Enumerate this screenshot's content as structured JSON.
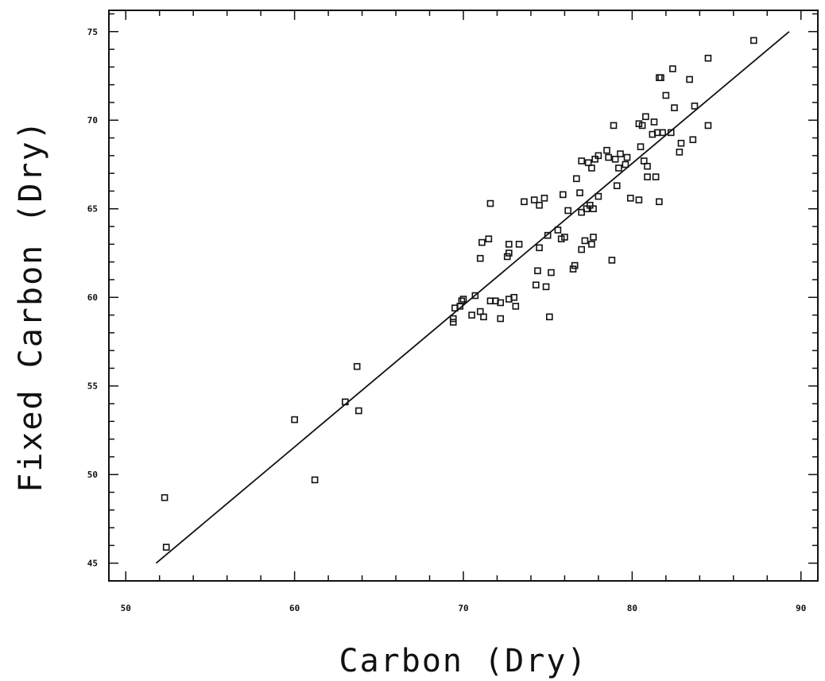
{
  "chart_data": {
    "type": "scatter",
    "xlabel": "Carbon (Dry)",
    "ylabel": "Fixed Carbon (Dry)",
    "xlim": [
      49,
      91
    ],
    "ylim": [
      44,
      76.2
    ],
    "xticks": [
      50,
      60,
      70,
      80,
      90
    ],
    "yticks": [
      45,
      50,
      55,
      60,
      65,
      70,
      75
    ],
    "grid": false,
    "fit_line": {
      "x": [
        51.8,
        89.3
      ],
      "y": [
        45.0,
        75.0
      ]
    },
    "points": [
      [
        52.3,
        48.7
      ],
      [
        52.4,
        45.9
      ],
      [
        60.0,
        53.1
      ],
      [
        61.2,
        49.7
      ],
      [
        63.0,
        54.1
      ],
      [
        63.7,
        56.1
      ],
      [
        63.8,
        53.6
      ],
      [
        69.4,
        58.8
      ],
      [
        69.4,
        58.6
      ],
      [
        69.5,
        59.4
      ],
      [
        69.8,
        59.5
      ],
      [
        69.9,
        59.8
      ],
      [
        70.0,
        59.9
      ],
      [
        70.5,
        59.0
      ],
      [
        70.7,
        60.1
      ],
      [
        71.0,
        62.2
      ],
      [
        71.0,
        59.2
      ],
      [
        71.1,
        63.1
      ],
      [
        71.2,
        58.9
      ],
      [
        71.5,
        63.3
      ],
      [
        71.6,
        59.8
      ],
      [
        71.6,
        65.3
      ],
      [
        71.9,
        59.8
      ],
      [
        72.2,
        58.8
      ],
      [
        72.2,
        59.7
      ],
      [
        72.6,
        62.3
      ],
      [
        72.7,
        62.5
      ],
      [
        72.7,
        63.0
      ],
      [
        72.7,
        59.9
      ],
      [
        73.0,
        60.0
      ],
      [
        73.1,
        59.5
      ],
      [
        73.3,
        63.0
      ],
      [
        73.6,
        65.4
      ],
      [
        74.2,
        65.5
      ],
      [
        74.3,
        60.7
      ],
      [
        74.4,
        61.5
      ],
      [
        74.5,
        62.8
      ],
      [
        74.5,
        65.2
      ],
      [
        74.8,
        65.6
      ],
      [
        74.9,
        60.6
      ],
      [
        75.0,
        63.5
      ],
      [
        75.1,
        58.9
      ],
      [
        75.2,
        61.4
      ],
      [
        75.6,
        63.8
      ],
      [
        75.8,
        63.3
      ],
      [
        75.9,
        65.8
      ],
      [
        76.0,
        63.4
      ],
      [
        76.2,
        64.9
      ],
      [
        76.5,
        61.6
      ],
      [
        76.6,
        61.8
      ],
      [
        76.7,
        66.7
      ],
      [
        76.9,
        65.9
      ],
      [
        77.0,
        64.8
      ],
      [
        77.0,
        62.7
      ],
      [
        77.0,
        67.7
      ],
      [
        77.2,
        63.2
      ],
      [
        77.3,
        65.0
      ],
      [
        77.4,
        67.6
      ],
      [
        77.5,
        65.2
      ],
      [
        77.6,
        63.0
      ],
      [
        77.6,
        67.3
      ],
      [
        77.7,
        63.4
      ],
      [
        77.7,
        65.0
      ],
      [
        77.8,
        67.8
      ],
      [
        78.0,
        68.0
      ],
      [
        78.0,
        65.7
      ],
      [
        78.5,
        68.3
      ],
      [
        78.6,
        67.9
      ],
      [
        78.8,
        62.1
      ],
      [
        78.9,
        69.7
      ],
      [
        79.0,
        67.8
      ],
      [
        79.1,
        66.3
      ],
      [
        79.2,
        67.3
      ],
      [
        79.3,
        68.1
      ],
      [
        79.6,
        67.5
      ],
      [
        79.7,
        67.9
      ],
      [
        79.9,
        65.6
      ],
      [
        80.4,
        65.5
      ],
      [
        80.4,
        69.8
      ],
      [
        80.5,
        68.5
      ],
      [
        80.6,
        69.7
      ],
      [
        80.7,
        67.7
      ],
      [
        80.8,
        70.2
      ],
      [
        80.9,
        67.4
      ],
      [
        80.9,
        66.8
      ],
      [
        81.2,
        69.2
      ],
      [
        81.3,
        69.9
      ],
      [
        81.4,
        66.8
      ],
      [
        81.5,
        69.3
      ],
      [
        81.6,
        65.4
      ],
      [
        81.6,
        72.4
      ],
      [
        81.7,
        72.4
      ],
      [
        81.8,
        69.3
      ],
      [
        82.0,
        71.4
      ],
      [
        82.3,
        69.3
      ],
      [
        82.4,
        72.9
      ],
      [
        82.5,
        70.7
      ],
      [
        82.8,
        68.2
      ],
      [
        82.9,
        68.7
      ],
      [
        83.4,
        72.3
      ],
      [
        83.6,
        68.9
      ],
      [
        83.7,
        70.8
      ],
      [
        84.5,
        73.5
      ],
      [
        84.5,
        69.7
      ],
      [
        87.2,
        74.5
      ]
    ]
  }
}
